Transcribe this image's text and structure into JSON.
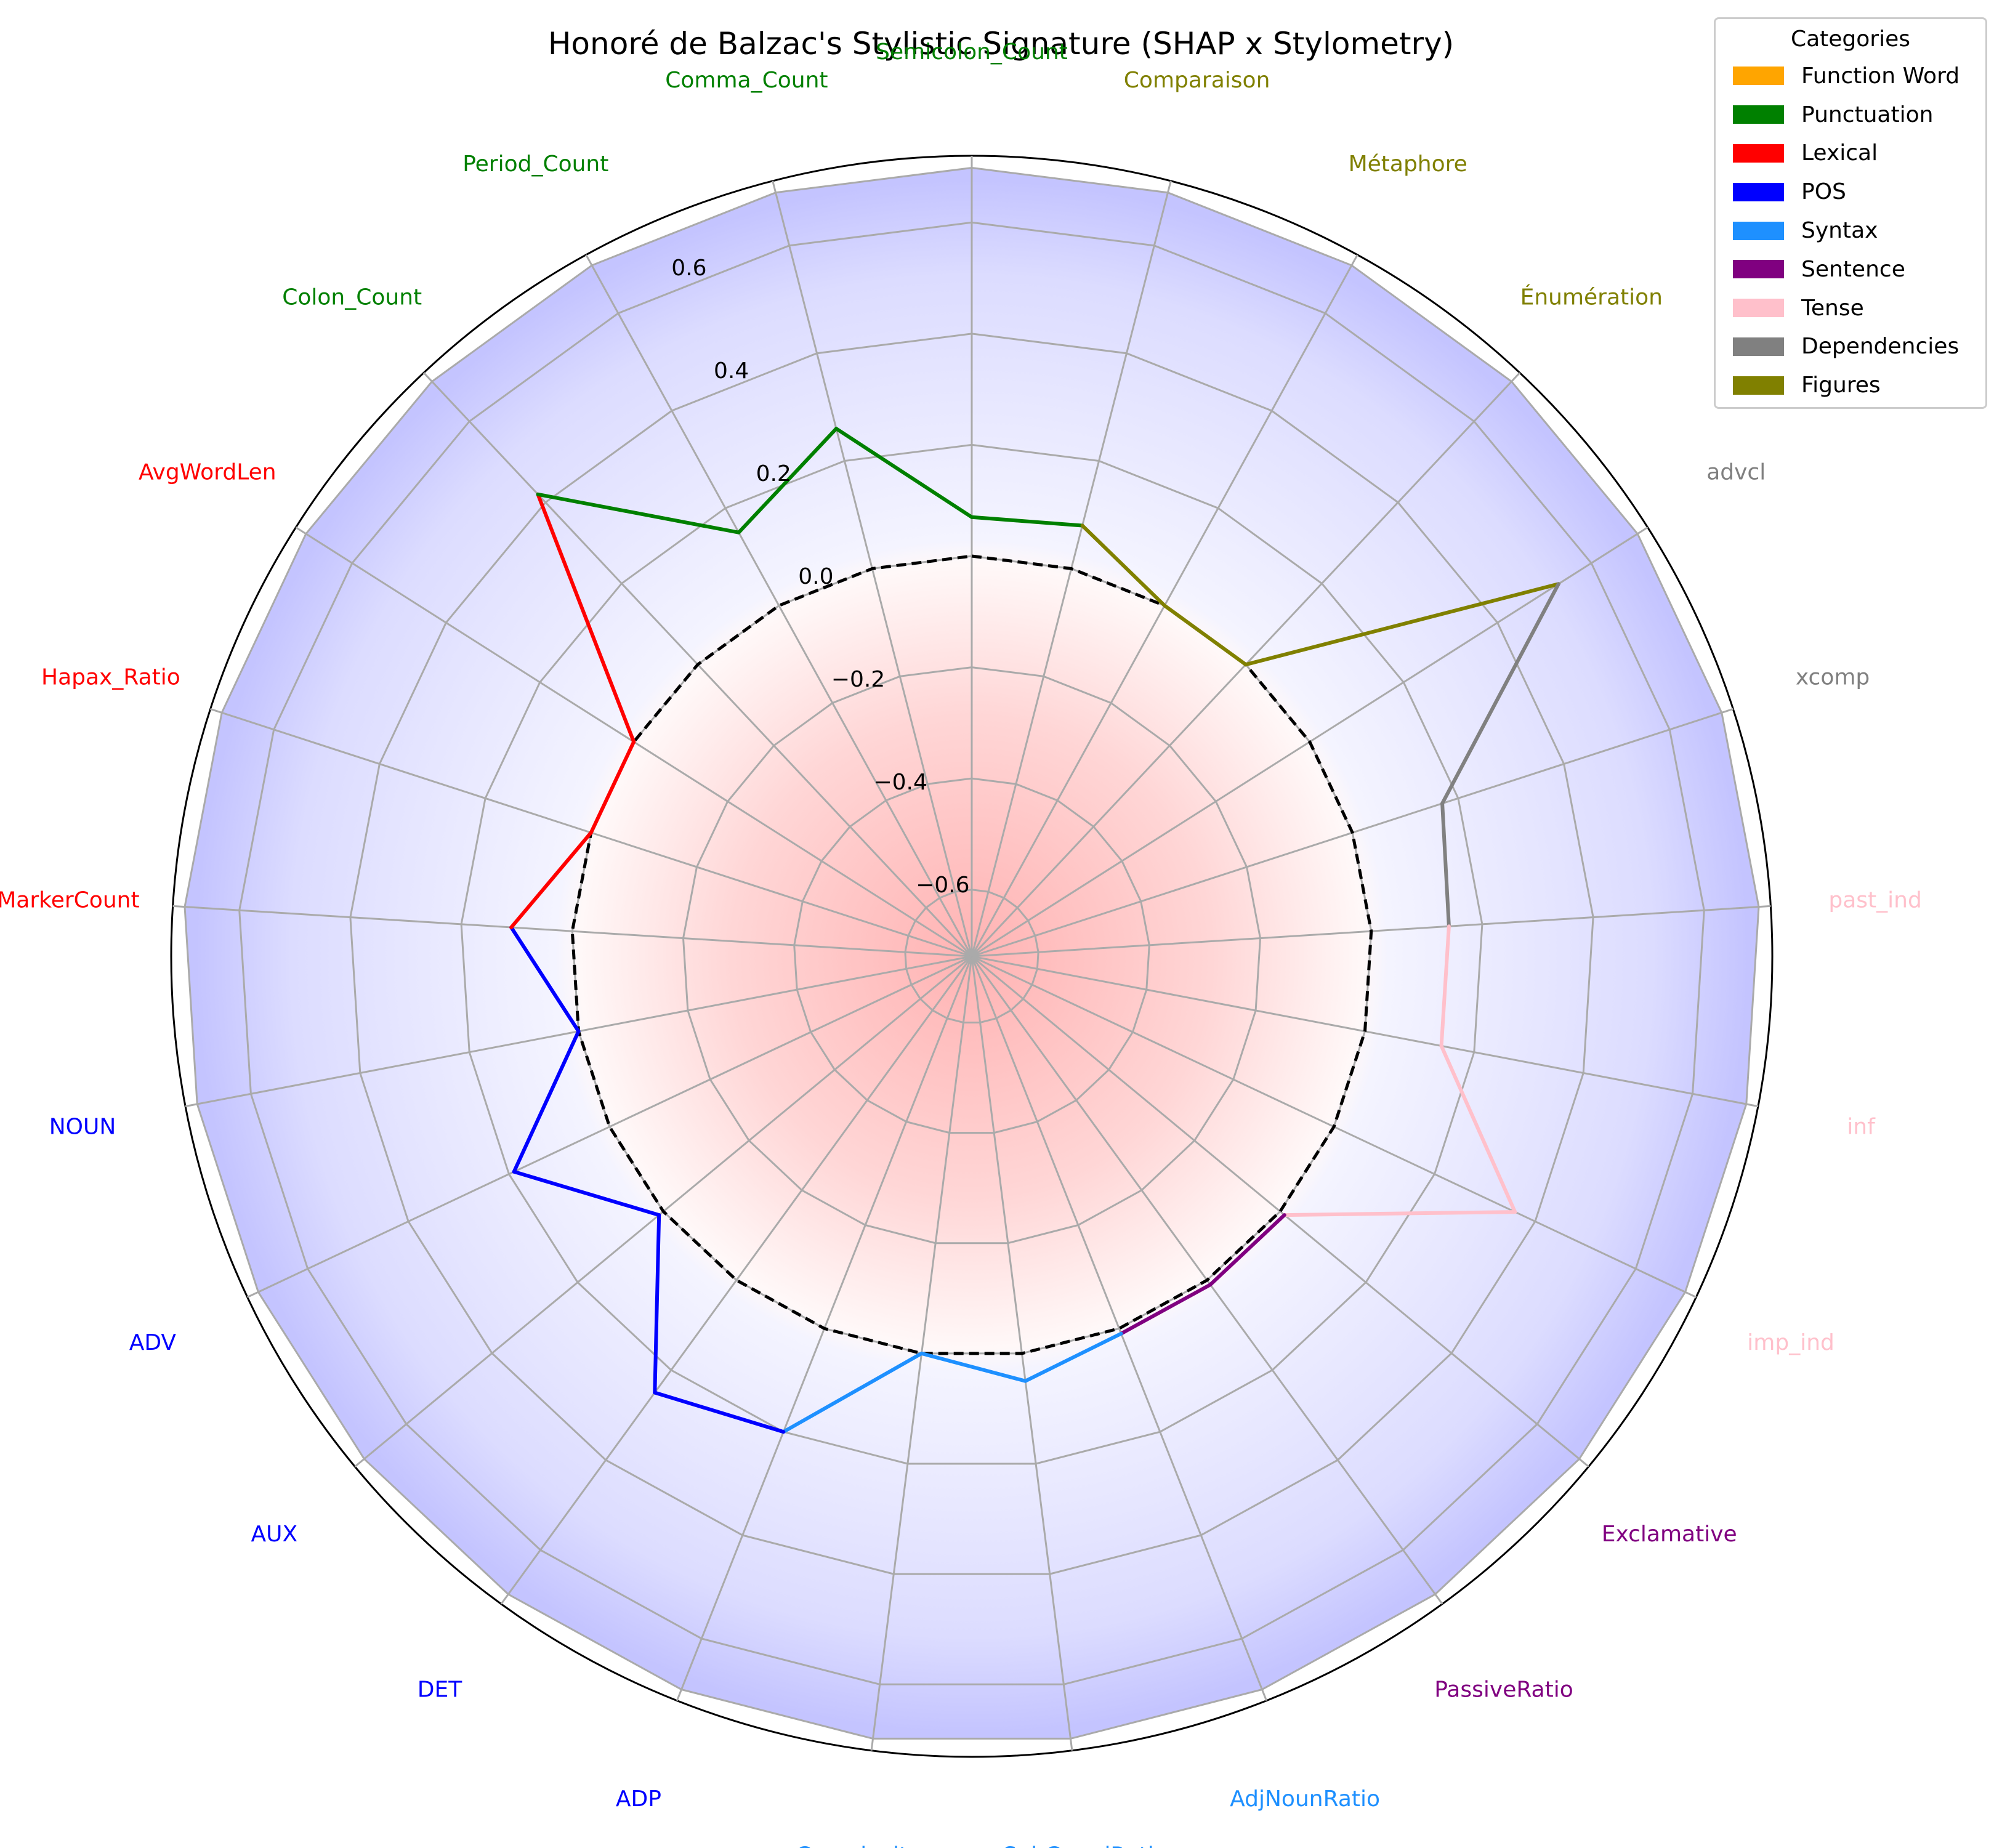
{
  "chart_data": {
    "type": "radar",
    "title": "Honoré de Balzac's Stylistic Signature (SHAP x Stylometry)",
    "axes": [
      {
        "label": "Semicolon_Count",
        "category": "Punctuation",
        "value": 0.07
      },
      {
        "label": "Comparaison",
        "category": "Figures",
        "value": 0.08
      },
      {
        "label": "Métaphore",
        "category": "Figures",
        "value": 0.0
      },
      {
        "label": "Énumération",
        "category": "Figures",
        "value": 0.0
      },
      {
        "label": "advcl",
        "category": "Dependencies",
        "value": 0.53
      },
      {
        "label": "xcomp",
        "category": "Dependencies",
        "value": 0.17
      },
      {
        "label": "past_ind",
        "category": "Tense",
        "value": 0.14
      },
      {
        "label": "inf",
        "category": "Tense",
        "value": 0.14
      },
      {
        "label": "imp_ind",
        "category": "Tense",
        "value": 0.36
      },
      {
        "label": "Exclamative",
        "category": "Sentence",
        "value": 0.01
      },
      {
        "label": "PassiveRatio",
        "category": "Sentence",
        "value": 0.01
      },
      {
        "label": "AdjNounRatio",
        "category": "Syntax",
        "value": 0.01
      },
      {
        "label": "SubCoordRatio",
        "category": "Syntax",
        "value": 0.05
      },
      {
        "label": "Complexity",
        "category": "Syntax",
        "value": 0.0
      },
      {
        "label": "ADP",
        "category": "POS",
        "value": 0.2
      },
      {
        "label": "DET",
        "category": "POS",
        "value": 0.25
      },
      {
        "label": "AUX",
        "category": "POS",
        "value": 0.01
      },
      {
        "label": "ADV",
        "category": "POS",
        "value": 0.19
      },
      {
        "label": "NOUN",
        "category": "POS",
        "value": 0.0
      },
      {
        "label": "MarkerCount",
        "category": "Lexical",
        "value": 0.11
      },
      {
        "label": "Hapax_Ratio",
        "category": "Lexical",
        "value": 0.0
      },
      {
        "label": "AvgWordLen",
        "category": "Lexical",
        "value": 0.0
      },
      {
        "label": "Colon_Count",
        "category": "Punctuation",
        "value": 0.42
      },
      {
        "label": "Period_Count",
        "category": "Punctuation",
        "value": 0.15
      },
      {
        "label": "Comma_Count",
        "category": "Punctuation",
        "value": 0.26
      }
    ],
    "rlim": [
      -0.72,
      0.72
    ],
    "rticks": [
      -0.6,
      -0.4,
      -0.2,
      0.0,
      0.2,
      0.4,
      0.6
    ],
    "rtick_labels": [
      "−0.6",
      "−0.4",
      "−0.2",
      "0.0",
      "0.2",
      "0.4",
      "0.6"
    ],
    "zero_line": "dashed black",
    "background": "radial gradient: red below 0, blue above 0",
    "grid": true,
    "legend": {
      "title": "Categories",
      "placement": "top-right",
      "entries": [
        {
          "name": "Function Word",
          "color": "#FFA500"
        },
        {
          "name": "Punctuation",
          "color": "#008000"
        },
        {
          "name": "Lexical",
          "color": "#FF0000"
        },
        {
          "name": "POS",
          "color": "#0000FF"
        },
        {
          "name": "Syntax",
          "color": "#1E90FF"
        },
        {
          "name": "Sentence",
          "color": "#800080"
        },
        {
          "name": "Tense",
          "color": "#FFC0CB"
        },
        {
          "name": "Dependencies",
          "color": "#808080"
        },
        {
          "name": "Figures",
          "color": "#808000"
        }
      ]
    }
  }
}
